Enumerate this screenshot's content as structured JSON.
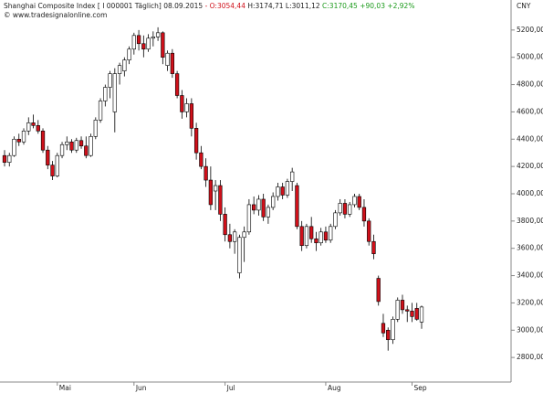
{
  "chart_data": {
    "type": "candlestick",
    "title": "Shanghai Composite Index [ I 000001  Täglich] 08.09.2015",
    "header_open": "- O:3054,44",
    "header_high_low": "H:3174,71 L:3011,12",
    "header_close": "C:3170,45 +90,03 +2,92%",
    "watermark": "© www.tradesignalonline.com",
    "currency": "CNY",
    "up_color": "#ffffff",
    "down_color": "#d0101a",
    "categories": [
      null,
      null,
      null,
      null,
      null,
      null,
      null,
      null,
      null,
      null,
      null,
      "Mai",
      null,
      null,
      null,
      null,
      null,
      null,
      null,
      null,
      null,
      null,
      null,
      null,
      null,
      null,
      null,
      "Jun",
      null,
      null,
      null,
      null,
      null,
      null,
      null,
      null,
      null,
      null,
      null,
      null,
      null,
      null,
      null,
      null,
      null,
      null,
      "Jul",
      null,
      null,
      null,
      null,
      null,
      null,
      null,
      null,
      null,
      null,
      null,
      null,
      null,
      null,
      null,
      null,
      null,
      null,
      null,
      null,
      "Aug",
      null,
      null,
      null,
      null,
      null,
      null,
      null,
      null,
      null,
      null,
      null,
      null,
      null,
      null,
      null,
      null,
      null,
      "Sep",
      null,
      null
    ],
    "open": [
      4280,
      4230,
      4280,
      4400,
      4380,
      4460,
      4520,
      4500,
      4460,
      4320,
      4210,
      4130,
      4280,
      4360,
      4380,
      4320,
      4390,
      4350,
      4280,
      4420,
      4540,
      4680,
      4780,
      4600,
      4880,
      4900,
      4980,
      5060,
      5160,
      5100,
      5060,
      5140,
      5150,
      5180,
      4940,
      5030,
      4880,
      4720,
      4600,
      4660,
      4480,
      4300,
      4200,
      4100,
      4020,
      4060,
      3850,
      3700,
      3650,
      3420,
      3680,
      3720,
      3920,
      3880,
      3960,
      3830,
      3900,
      3980,
      4050,
      3990,
      4090,
      4060,
      3760,
      3620,
      3760,
      3670,
      3640,
      3720,
      3660,
      3760,
      3860,
      3930,
      3850,
      3920,
      3980,
      3900,
      3800,
      3650,
      3380,
      3050,
      3000,
      2930,
      3080,
      3220,
      3150,
      3140,
      3160,
      3060
    ],
    "high": [
      4320,
      4300,
      4420,
      4440,
      4480,
      4560,
      4580,
      4540,
      4480,
      4350,
      4240,
      4300,
      4380,
      4420,
      4400,
      4410,
      4420,
      4420,
      4440,
      4560,
      4700,
      4800,
      4900,
      4920,
      4960,
      5000,
      5080,
      5180,
      5200,
      5160,
      5170,
      5190,
      5220,
      5190,
      5050,
      5060,
      4900,
      4760,
      4700,
      4700,
      4520,
      4350,
      4260,
      4200,
      4100,
      4100,
      3900,
      3780,
      3740,
      3700,
      3760,
      3960,
      3980,
      3990,
      4000,
      3920,
      4010,
      4080,
      4080,
      4110,
      4190,
      4080,
      3800,
      3780,
      3830,
      3720,
      3750,
      3760,
      3780,
      3880,
      3960,
      3960,
      3940,
      4000,
      4000,
      3960,
      3820,
      3700,
      3400,
      3120,
      3020,
      3100,
      3240,
      3260,
      3180,
      3200,
      3200,
      3180
    ],
    "low": [
      4200,
      4200,
      4270,
      4350,
      4360,
      4430,
      4480,
      4440,
      4300,
      4180,
      4100,
      4120,
      4260,
      4320,
      4300,
      4300,
      4330,
      4260,
      4270,
      4400,
      4520,
      4640,
      4700,
      4450,
      4800,
      4860,
      4950,
      5020,
      5050,
      5000,
      5040,
      5080,
      5120,
      4950,
      4900,
      4850,
      4700,
      4550,
      4560,
      4420,
      4250,
      4180,
      4050,
      3880,
      3880,
      3800,
      3650,
      3600,
      3560,
      3380,
      3500,
      3700,
      3850,
      3840,
      3800,
      3780,
      3880,
      3950,
      3960,
      3970,
      4020,
      3740,
      3580,
      3600,
      3640,
      3580,
      3620,
      3640,
      3640,
      3740,
      3840,
      3820,
      3830,
      3900,
      3880,
      3760,
      3620,
      3520,
      3180,
      2950,
      2850,
      2900,
      3060,
      3120,
      3060,
      3060,
      3070,
      3010
    ],
    "close": [
      4230,
      4280,
      4400,
      4380,
      4460,
      4520,
      4500,
      4460,
      4320,
      4210,
      4130,
      4280,
      4360,
      4380,
      4320,
      4390,
      4350,
      4280,
      4420,
      4540,
      4680,
      4780,
      4880,
      4880,
      4940,
      4980,
      5060,
      5160,
      5100,
      5060,
      5140,
      5150,
      5180,
      5000,
      5030,
      4880,
      4720,
      4600,
      4660,
      4480,
      4300,
      4200,
      4100,
      3920,
      4060,
      3850,
      3700,
      3650,
      3720,
      3680,
      3720,
      3920,
      3880,
      3960,
      3830,
      3900,
      3980,
      4050,
      3990,
      4090,
      4160,
      3760,
      3620,
      3760,
      3670,
      3640,
      3720,
      3660,
      3760,
      3860,
      3930,
      3850,
      3920,
      3980,
      3900,
      3800,
      3650,
      3560,
      3210,
      2980,
      2930,
      3080,
      3220,
      3150,
      3140,
      3100,
      3080,
      3170
    ],
    "ylim": [
      2620,
      5420
    ],
    "yticks": [
      {
        "value": 2800,
        "label": "2800,00"
      },
      {
        "value": 3000,
        "label": "3000,00"
      },
      {
        "value": 3200,
        "label": "3200,00"
      },
      {
        "value": 3400,
        "label": "3400,00"
      },
      {
        "value": 3600,
        "label": "3600,00"
      },
      {
        "value": 3800,
        "label": "3800,00"
      },
      {
        "value": 4000,
        "label": "4000,00"
      },
      {
        "value": 4200,
        "label": "4200,00"
      },
      {
        "value": 4400,
        "label": "4400,00"
      },
      {
        "value": 4600,
        "label": "4600,00"
      },
      {
        "value": 4800,
        "label": "4800,00"
      },
      {
        "value": 5000,
        "label": "5000,00"
      },
      {
        "value": 5200,
        "label": "5200,00"
      }
    ]
  }
}
